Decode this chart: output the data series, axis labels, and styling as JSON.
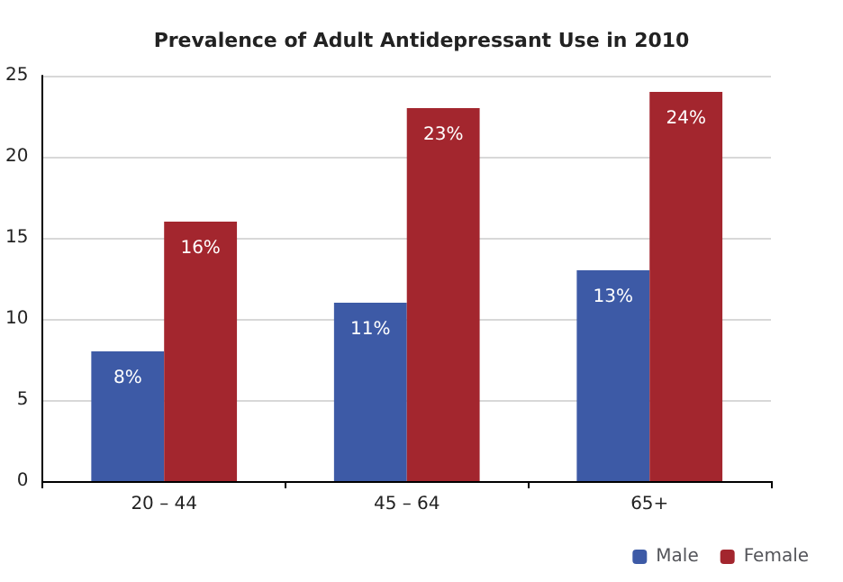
{
  "chart_data": {
    "type": "bar",
    "title": "Prevalence of Adult Antidepressant Use in 2010",
    "categories": [
      "20 – 44",
      "45 – 64",
      "65+"
    ],
    "series": [
      {
        "name": "Male",
        "color": "#3d5aa6",
        "values": [
          8,
          11,
          13
        ],
        "value_labels": [
          "8%",
          "11%",
          "13%"
        ]
      },
      {
        "name": "Female",
        "color": "#a3262e",
        "values": [
          16,
          23,
          24
        ],
        "value_labels": [
          "16%",
          "23%",
          "24%"
        ]
      }
    ],
    "ylim": [
      0,
      25
    ],
    "yticks": [
      0,
      5,
      10,
      15,
      20,
      25
    ],
    "grid": "y",
    "legend": "bottom right"
  }
}
